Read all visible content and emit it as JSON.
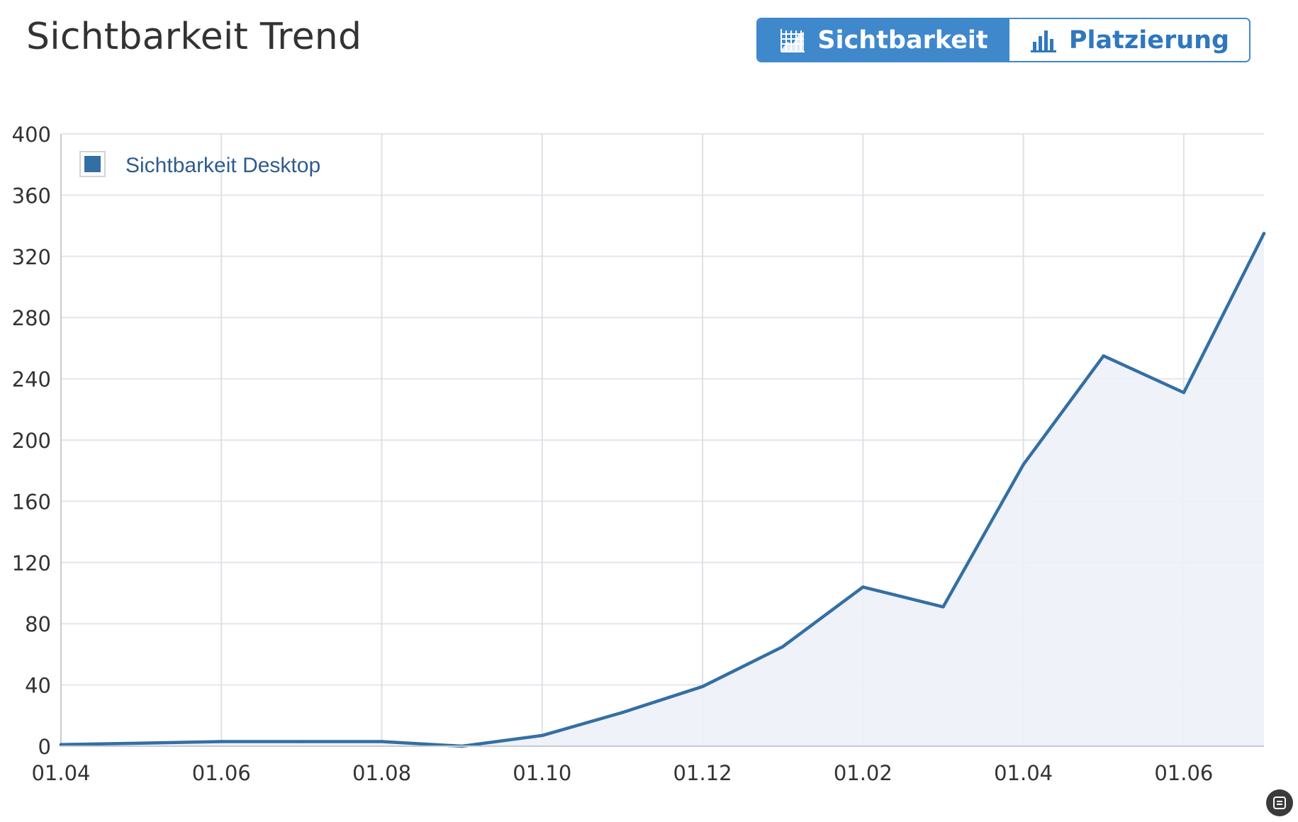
{
  "page_title": "Sichtbarkeit Trend",
  "toggle": {
    "active_label": "Sichtbarkeit",
    "inactive_label": "Platzierung",
    "active_icon": "area-chart-icon",
    "inactive_icon": "bar-chart-icon",
    "accent_color": "#3f88cc"
  },
  "chart_data": {
    "type": "area",
    "title": "",
    "xlabel": "",
    "ylabel": "",
    "ylim": [
      0,
      400
    ],
    "yticks": [
      0,
      40,
      80,
      120,
      160,
      200,
      240,
      280,
      320,
      360,
      400
    ],
    "xticks": [
      "01.04",
      "01.06",
      "01.08",
      "01.10",
      "01.12",
      "01.02",
      "01.04",
      "01.06"
    ],
    "grid": true,
    "legend_position": "top-left",
    "series": [
      {
        "name": "Sichtbarkeit Desktop",
        "color": "#336fa3",
        "x": [
          "01.04",
          "01.05",
          "01.06",
          "01.07",
          "01.08",
          "01.09",
          "01.10",
          "01.11",
          "01.12",
          "01.01",
          "01.02",
          "01.03",
          "01.04",
          "01.05",
          "01.06",
          "01.07"
        ],
        "values": [
          1,
          2,
          3,
          3,
          3,
          0,
          7,
          22,
          39,
          65,
          104,
          91,
          184,
          255,
          231,
          335
        ]
      }
    ]
  }
}
